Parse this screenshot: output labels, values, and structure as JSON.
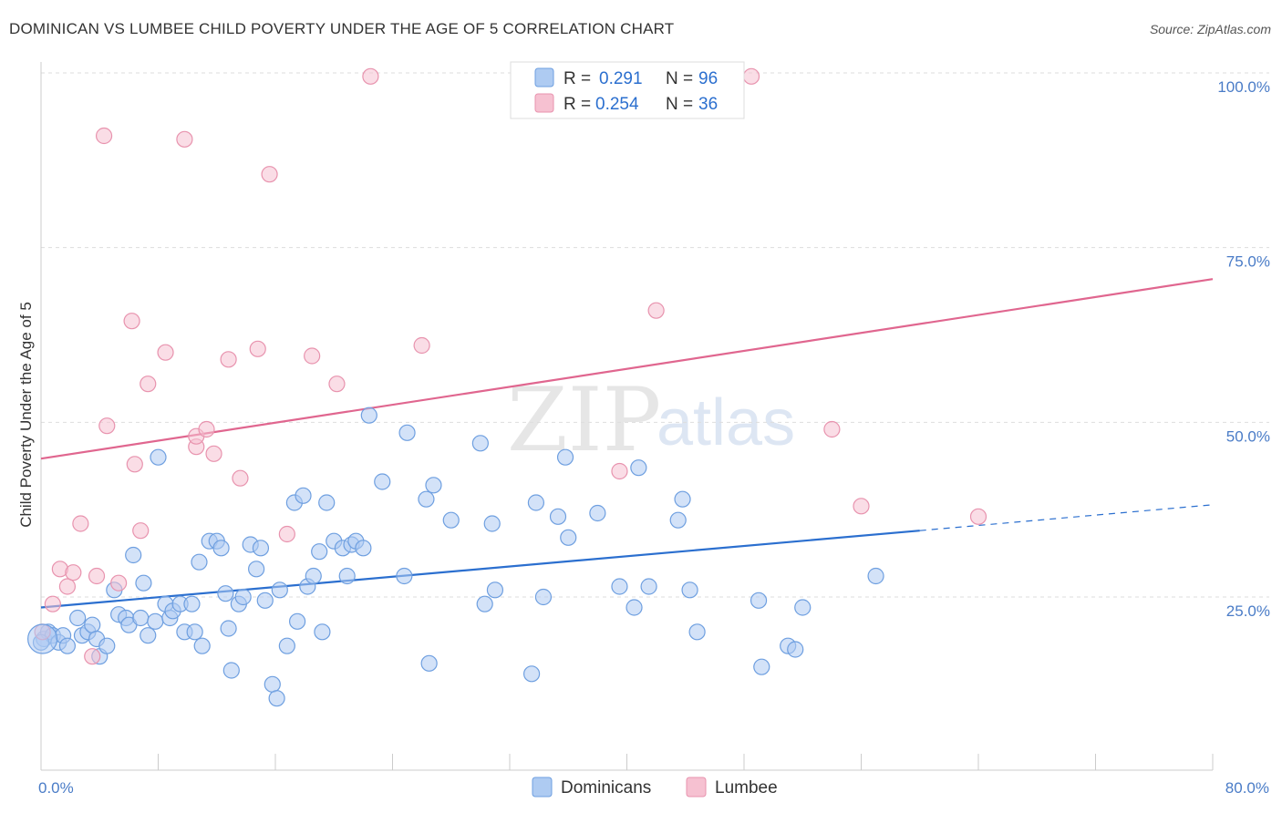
{
  "header": {
    "title": "DOMINICAN VS LUMBEE CHILD POVERTY UNDER THE AGE OF 5 CORRELATION CHART",
    "source": "Source: ZipAtlas.com"
  },
  "watermark": {
    "zip": "ZIP",
    "atlas": "atlas"
  },
  "legend_top": {
    "rows": [
      {
        "r_label": "R =",
        "r_value": "0.291",
        "n_label": "N =",
        "n_value": "96"
      },
      {
        "r_label": "R =",
        "r_value": "0.254",
        "n_label": "N =",
        "n_value": "36"
      }
    ]
  },
  "colors": {
    "blue_fill": "#aecbf2",
    "blue_stroke": "#6e9fe0",
    "blue_line": "#2b6fcf",
    "pink_fill": "#f6c1d1",
    "pink_stroke": "#e893ae",
    "pink_line": "#e0668f",
    "tick_text": "#4a7cc7",
    "grid": "#dddddd"
  },
  "chart_data": {
    "type": "scatter",
    "title": "DOMINICAN VS LUMBEE CHILD POVERTY UNDER THE AGE OF 5 CORRELATION CHART",
    "xlabel": "",
    "ylabel": "Child Poverty Under the Age of 5",
    "xlim": [
      0,
      80
    ],
    "ylim": [
      0,
      102
    ],
    "x_tick_labels": [
      "0.0%",
      "80.0%"
    ],
    "y_ticks": [
      25,
      50,
      75,
      100
    ],
    "y_tick_labels": [
      "25.0%",
      "50.0%",
      "75.0%",
      "100.0%"
    ],
    "grid": true,
    "legend_position": "top-center",
    "series": [
      {
        "name": "Dominicans",
        "color": "#aecbf2",
        "r": 0.291,
        "n": 96,
        "trend": {
          "x0": 0,
          "y0": 23.5,
          "x1": 60,
          "y1": 34.5,
          "dashed_to_x": 80,
          "dashed_to_y": 38.2
        },
        "points": [
          [
            0.2,
            19
          ],
          [
            0.5,
            20
          ],
          [
            0.8,
            19.5
          ],
          [
            1.2,
            18.5
          ],
          [
            1.5,
            19.5
          ],
          [
            1.8,
            18
          ],
          [
            2.5,
            22
          ],
          [
            2.8,
            19.5
          ],
          [
            3.2,
            20
          ],
          [
            3.5,
            21
          ],
          [
            3.8,
            19
          ],
          [
            4.0,
            16.5
          ],
          [
            4.5,
            18
          ],
          [
            5.0,
            26
          ],
          [
            5.3,
            22.5
          ],
          [
            5.8,
            22
          ],
          [
            6.0,
            21
          ],
          [
            6.3,
            31
          ],
          [
            6.8,
            22
          ],
          [
            7.0,
            27
          ],
          [
            7.3,
            19.5
          ],
          [
            7.8,
            21.5
          ],
          [
            8.0,
            45
          ],
          [
            8.5,
            24
          ],
          [
            8.8,
            22
          ],
          [
            9.0,
            23
          ],
          [
            9.5,
            24
          ],
          [
            9.8,
            20
          ],
          [
            10.3,
            24
          ],
          [
            10.5,
            20
          ],
          [
            10.8,
            30
          ],
          [
            11.0,
            18
          ],
          [
            11.5,
            33
          ],
          [
            12.0,
            33
          ],
          [
            12.3,
            32
          ],
          [
            12.6,
            25.5
          ],
          [
            12.8,
            20.5
          ],
          [
            13.0,
            14.5
          ],
          [
            13.5,
            24
          ],
          [
            13.8,
            25
          ],
          [
            14.3,
            32.5
          ],
          [
            14.7,
            29
          ],
          [
            15.0,
            32
          ],
          [
            15.3,
            24.5
          ],
          [
            15.8,
            12.5
          ],
          [
            16.1,
            10.5
          ],
          [
            16.3,
            26
          ],
          [
            16.8,
            18
          ],
          [
            17.3,
            38.5
          ],
          [
            17.5,
            21.5
          ],
          [
            17.9,
            39.5
          ],
          [
            18.2,
            26.5
          ],
          [
            18.6,
            28
          ],
          [
            19.0,
            31.5
          ],
          [
            19.2,
            20
          ],
          [
            19.5,
            38.5
          ],
          [
            20.0,
            33
          ],
          [
            20.6,
            32
          ],
          [
            20.9,
            28
          ],
          [
            21.2,
            32.5
          ],
          [
            21.5,
            33
          ],
          [
            22.0,
            32
          ],
          [
            22.4,
            51
          ],
          [
            23.3,
            41.5
          ],
          [
            24.8,
            28
          ],
          [
            25.0,
            48.5
          ],
          [
            26.5,
            15.5
          ],
          [
            26.8,
            41
          ],
          [
            26.3,
            39
          ],
          [
            28.0,
            36
          ],
          [
            30.0,
            47
          ],
          [
            30.3,
            24
          ],
          [
            30.8,
            35.5
          ],
          [
            31.0,
            26
          ],
          [
            33.5,
            14
          ],
          [
            33.8,
            38.5
          ],
          [
            34.3,
            25
          ],
          [
            35.3,
            36.5
          ],
          [
            35.8,
            45
          ],
          [
            36.0,
            33.5
          ],
          [
            38.0,
            37
          ],
          [
            39.5,
            26.5
          ],
          [
            40.5,
            23.5
          ],
          [
            40.8,
            43.5
          ],
          [
            41.5,
            26.5
          ],
          [
            43.5,
            36
          ],
          [
            43.8,
            39
          ],
          [
            44.3,
            26
          ],
          [
            44.8,
            20
          ],
          [
            49.0,
            24.5
          ],
          [
            49.2,
            15
          ],
          [
            51.0,
            18
          ],
          [
            51.5,
            17.5
          ],
          [
            52.0,
            23.5
          ],
          [
            57.0,
            28
          ],
          [
            0.0,
            18.5
          ]
        ]
      },
      {
        "name": "Lumbee",
        "color": "#f6c1d1",
        "r": 0.254,
        "n": 36,
        "trend": {
          "x0": 0,
          "y0": 44.8,
          "x1": 80,
          "y1": 70.5
        },
        "points": [
          [
            0.1,
            20
          ],
          [
            0.8,
            24
          ],
          [
            1.3,
            29
          ],
          [
            1.8,
            26.5
          ],
          [
            2.2,
            28.5
          ],
          [
            2.7,
            35.5
          ],
          [
            3.5,
            16.5
          ],
          [
            3.8,
            28
          ],
          [
            4.3,
            91
          ],
          [
            4.5,
            49.5
          ],
          [
            5.3,
            27
          ],
          [
            6.2,
            64.5
          ],
          [
            6.4,
            44
          ],
          [
            6.8,
            34.5
          ],
          [
            7.3,
            55.5
          ],
          [
            8.5,
            60
          ],
          [
            9.8,
            90.5
          ],
          [
            10.6,
            46.5
          ],
          [
            10.6,
            48
          ],
          [
            11.3,
            49
          ],
          [
            11.8,
            45.5
          ],
          [
            12.8,
            59
          ],
          [
            13.6,
            42
          ],
          [
            14.8,
            60.5
          ],
          [
            15.6,
            85.5
          ],
          [
            16.8,
            34
          ],
          [
            18.5,
            59.5
          ],
          [
            20.2,
            55.5
          ],
          [
            22.5,
            99.5
          ],
          [
            26.0,
            61
          ],
          [
            39.5,
            43
          ],
          [
            42.0,
            66
          ],
          [
            48.5,
            99.5
          ],
          [
            54.0,
            49
          ],
          [
            56.0,
            38
          ],
          [
            64.0,
            36.5
          ]
        ]
      }
    ]
  },
  "legend_bottom": {
    "items": [
      "Dominicans",
      "Lumbee"
    ]
  }
}
